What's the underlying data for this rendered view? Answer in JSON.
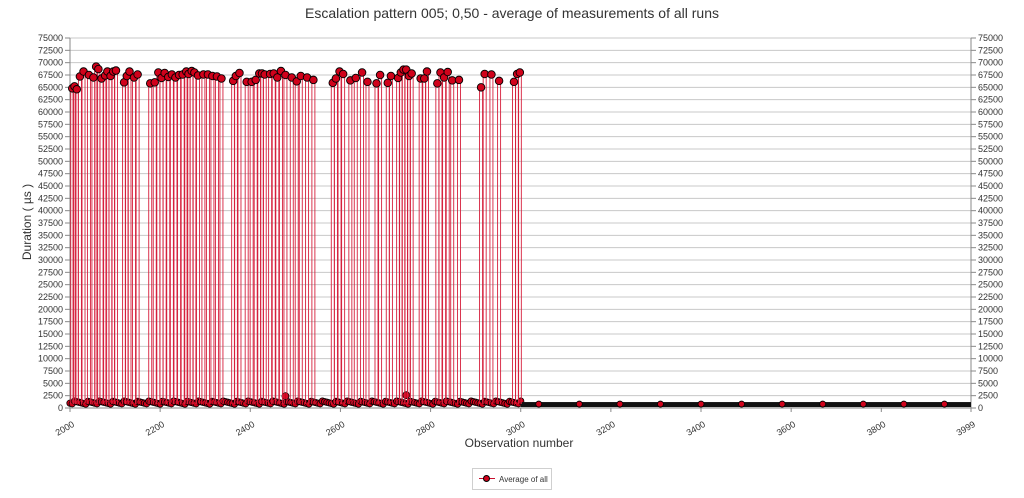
{
  "chart_data": {
    "type": "line",
    "title": "Escalation pattern 005; 0,50 - average of measurements of all runs",
    "xlabel": "Observation number",
    "ylabel": "Duration ( µs )",
    "xlim": [
      2000,
      3999
    ],
    "ylim": [
      0,
      75000
    ],
    "xticks": [
      "2000",
      "2200",
      "2400",
      "2600",
      "2800",
      "3000",
      "3200",
      "3400",
      "3600",
      "3800",
      "3999"
    ],
    "yticks": [
      "0",
      "2500",
      "5000",
      "7500",
      "10000",
      "12500",
      "15000",
      "17500",
      "20000",
      "22500",
      "25000",
      "27500",
      "30000",
      "32500",
      "35000",
      "37500",
      "40000",
      "42500",
      "45000",
      "47500",
      "50000",
      "52500",
      "55000",
      "57500",
      "60000",
      "62500",
      "65000",
      "67500",
      "70000",
      "72500",
      "75000"
    ],
    "grid": true,
    "right_axis": true,
    "legend_position": "bottom",
    "baseline_value": 800,
    "spikes": {
      "x": [
        2005,
        2010,
        2015,
        2022,
        2030,
        2042,
        2052,
        2058,
        2063,
        2070,
        2078,
        2083,
        2090,
        2096,
        2102,
        2120,
        2126,
        2132,
        2142,
        2150,
        2178,
        2188,
        2196,
        2203,
        2210,
        2218,
        2226,
        2234,
        2242,
        2250,
        2258,
        2263,
        2270,
        2276,
        2284,
        2296,
        2306,
        2316,
        2326,
        2336,
        2362,
        2368,
        2376,
        2392,
        2403,
        2412,
        2420,
        2426,
        2432,
        2444,
        2452,
        2460,
        2468,
        2478,
        2492,
        2503,
        2512,
        2526,
        2540,
        2583,
        2590,
        2598,
        2606,
        2622,
        2634,
        2648,
        2660,
        2680,
        2688,
        2705,
        2712,
        2728,
        2734,
        2740,
        2746,
        2752,
        2758,
        2778,
        2786,
        2792,
        2815,
        2822,
        2830,
        2838,
        2848,
        2863,
        2912,
        2920,
        2935,
        2952,
        2985,
        2992,
        2998
      ],
      "values": [
        64800,
        65200,
        64600,
        67200,
        68200,
        67500,
        67000,
        69200,
        68700,
        66800,
        67400,
        68200,
        67300,
        68200,
        68400,
        66000,
        67300,
        68200,
        67000,
        67600,
        65800,
        66000,
        68000,
        66900,
        67900,
        67100,
        67600,
        67000,
        67500,
        67600,
        68200,
        67700,
        68300,
        68000,
        67400,
        67600,
        67600,
        67300,
        67200,
        66800,
        66300,
        67300,
        67900,
        66100,
        66100,
        66500,
        67800,
        67800,
        67600,
        67700,
        67800,
        67000,
        68300,
        67500,
        67000,
        66200,
        67300,
        67000,
        66500,
        65900,
        66800,
        68200,
        67700,
        66400,
        66900,
        68000,
        66100,
        65800,
        67500,
        65900,
        67300,
        66900,
        68000,
        68600,
        68600,
        67300,
        67800,
        66800,
        66800,
        68200,
        65800,
        68000,
        67000,
        68100,
        66400,
        66500,
        65000,
        67700,
        67600,
        66300,
        66100,
        67700,
        68000
      ]
    },
    "series": [
      {
        "name": "Average of all"
      }
    ]
  }
}
